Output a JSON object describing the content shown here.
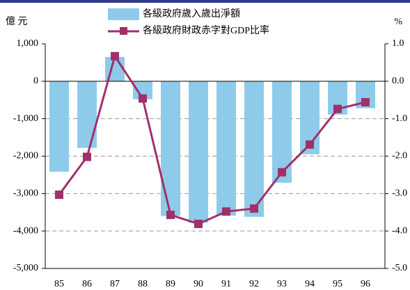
{
  "chart_data": {
    "type": "bar_line",
    "y_label": "億 元",
    "y2_label": "%",
    "categories": [
      "85",
      "86",
      "87",
      "88",
      "89",
      "90",
      "91",
      "92",
      "93",
      "94",
      "95",
      "96"
    ],
    "series": [
      {
        "name": "各級政府歲入歲出淨額",
        "type": "bar",
        "color": "#8ecbea",
        "values": [
          -2416,
          -1780,
          650,
          -480,
          -3600,
          -3780,
          -3590,
          -3620,
          -2710,
          -1950,
          -890,
          -720
        ]
      },
      {
        "name": "各級政府財政赤字對GDP比率",
        "type": "line",
        "axis": "y2",
        "color": "#a0306a",
        "values": [
          -3.03,
          -2.02,
          0.67,
          -0.46,
          -3.57,
          -3.81,
          -3.48,
          -3.4,
          -2.43,
          -1.69,
          -0.74,
          -0.56
        ]
      }
    ],
    "ylim": [
      -5000,
      1000
    ],
    "yticks": [
      {
        "value": 1000,
        "label": "1,000"
      },
      0,
      {
        "value": -1000,
        "label": "-1,000"
      },
      {
        "value": -2000,
        "label": "-2,000"
      },
      {
        "value": -3000,
        "label": "-3,000"
      },
      {
        "value": -4000,
        "label": "-4,000"
      },
      {
        "value": -5000,
        "label": "-5,000"
      }
    ],
    "y2lim": [
      -5.0,
      1.0
    ],
    "y2ticks": [
      {
        "value": 1.0,
        "label": "1.0"
      },
      {
        "value": 0,
        "label": "0.0"
      },
      {
        "value": -1.0,
        "label": "-1.0"
      },
      {
        "value": -2.0,
        "label": "-2.0"
      },
      {
        "value": -3.0,
        "label": "-3.0"
      },
      {
        "value": -4.0,
        "label": "-4.0"
      },
      {
        "value": -5.0,
        "label": "-5.0"
      }
    ],
    "grid": true
  }
}
